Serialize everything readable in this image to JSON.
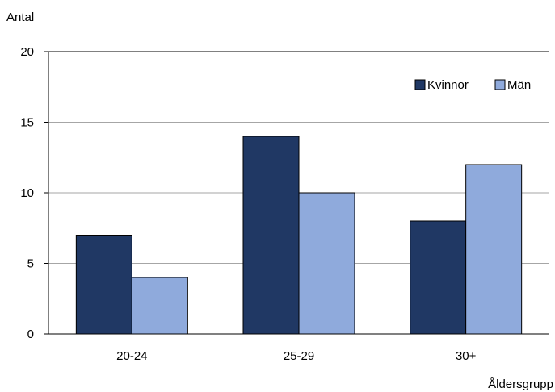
{
  "chart_data": {
    "type": "bar",
    "categories": [
      "20-24",
      "25-29",
      "30+"
    ],
    "series": [
      {
        "name": "Kvinnor",
        "values": [
          7,
          14,
          8
        ],
        "color": "#203864"
      },
      {
        "name": "Män",
        "values": [
          4,
          10,
          12
        ],
        "color": "#8faadc"
      }
    ],
    "ylabel": "Antal",
    "xlabel": "Åldersgrupp",
    "ylim": [
      0,
      20
    ],
    "yticks": [
      0,
      5,
      10,
      15,
      20
    ],
    "grid": true,
    "legend_position": "top-right"
  }
}
